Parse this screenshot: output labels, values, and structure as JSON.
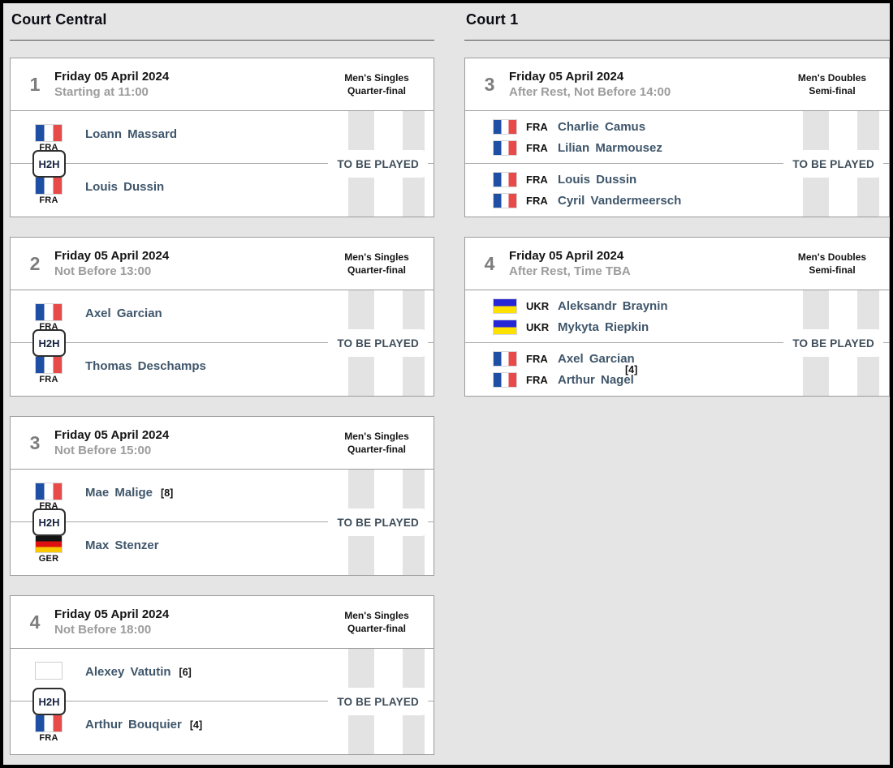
{
  "labels": {
    "h2h": "H2H",
    "status": "TO BE PLAYED"
  },
  "colors": {
    "page_background": "#e6e5e5",
    "page_border": "#000000",
    "card_border": "#9c9c9c",
    "stripe_gray": "#e3e3e3",
    "player_name": "#3f566b",
    "muted_gray": "#9c9c9c",
    "fra_blue": "#1e4fa5",
    "fra_red": "#e84a4a",
    "ger_black": "#141414",
    "ger_red": "#dd1111",
    "ger_gold": "#f8c800",
    "ukr_blue": "#2526d6",
    "ukr_yellow": "#ffe100"
  },
  "courts": [
    {
      "title": "Court Central",
      "matches": [
        {
          "number": "1",
          "date": "Friday 05 April 2024",
          "time": "Starting at 11:00",
          "event": "Men's Singles",
          "round": "Quarter-final",
          "status": "TO BE PLAYED",
          "sides": [
            {
              "players": [
                {
                  "name": "Loann Massard",
                  "seed": "",
                  "country": "FRA",
                  "flag": "fra-flag-icon"
                }
              ]
            },
            {
              "players": [
                {
                  "name": "Louis Dussin",
                  "seed": "",
                  "country": "FRA",
                  "flag": "fra-flag-icon"
                }
              ]
            }
          ]
        },
        {
          "number": "2",
          "date": "Friday 05 April 2024",
          "time": "Not Before 13:00",
          "event": "Men's Singles",
          "round": "Quarter-final",
          "status": "TO BE PLAYED",
          "sides": [
            {
              "players": [
                {
                  "name": "Axel Garcian",
                  "seed": "",
                  "country": "FRA",
                  "flag": "fra-flag-icon"
                }
              ]
            },
            {
              "players": [
                {
                  "name": "Thomas Deschamps",
                  "seed": "",
                  "country": "FRA",
                  "flag": "fra-flag-icon"
                }
              ]
            }
          ]
        },
        {
          "number": "3",
          "date": "Friday 05 April 2024",
          "time": "Not Before 15:00",
          "event": "Men's Singles",
          "round": "Quarter-final",
          "status": "TO BE PLAYED",
          "sides": [
            {
              "players": [
                {
                  "name": "Mae Malige",
                  "seed": "[8]",
                  "country": "FRA",
                  "flag": "fra-flag-icon"
                }
              ]
            },
            {
              "players": [
                {
                  "name": "Max Stenzer",
                  "seed": "",
                  "country": "GER",
                  "flag": "ger-flag-icon"
                }
              ]
            }
          ]
        },
        {
          "number": "4",
          "date": "Friday 05 April 2024",
          "time": "Not Before 18:00",
          "event": "Men's Singles",
          "round": "Quarter-final",
          "status": "TO BE PLAYED",
          "sides": [
            {
              "players": [
                {
                  "name": "Alexey Vatutin",
                  "seed": "[6]",
                  "country": "",
                  "flag": "blank-flag-icon"
                }
              ]
            },
            {
              "players": [
                {
                  "name": "Arthur Bouquier",
                  "seed": "[4]",
                  "country": "FRA",
                  "flag": "fra-flag-icon"
                }
              ]
            }
          ]
        }
      ]
    },
    {
      "title": "Court 1",
      "matches": [
        {
          "number": "3",
          "date": "Friday 05 April 2024",
          "time": "After Rest, Not Before 14:00",
          "event": "Men's Doubles",
          "round": "Semi-final",
          "status": "TO BE PLAYED",
          "sides": [
            {
              "seed": "",
              "players": [
                {
                  "name": "Charlie Camus",
                  "country": "FRA",
                  "flag": "fra-flag-icon"
                },
                {
                  "name": "Lilian Marmousez",
                  "country": "FRA",
                  "flag": "fra-flag-icon"
                }
              ]
            },
            {
              "seed": "",
              "players": [
                {
                  "name": "Louis Dussin",
                  "country": "FRA",
                  "flag": "fra-flag-icon"
                },
                {
                  "name": "Cyril Vandermeersch",
                  "country": "FRA",
                  "flag": "fra-flag-icon"
                }
              ]
            }
          ]
        },
        {
          "number": "4",
          "date": "Friday 05 April 2024",
          "time": "After Rest, Time TBA",
          "event": "Men's Doubles",
          "round": "Semi-final",
          "status": "TO BE PLAYED",
          "sides": [
            {
              "seed": "",
              "players": [
                {
                  "name": "Aleksandr Braynin",
                  "country": "UKR",
                  "flag": "ukr-flag-icon"
                },
                {
                  "name": "Mykyta Riepkin",
                  "country": "UKR",
                  "flag": "ukr-flag-icon"
                }
              ]
            },
            {
              "seed": "[4]",
              "players": [
                {
                  "name": "Axel Garcian",
                  "country": "FRA",
                  "flag": "fra-flag-icon"
                },
                {
                  "name": "Arthur Nagel",
                  "country": "FRA",
                  "flag": "fra-flag-icon"
                }
              ]
            }
          ]
        }
      ]
    }
  ]
}
